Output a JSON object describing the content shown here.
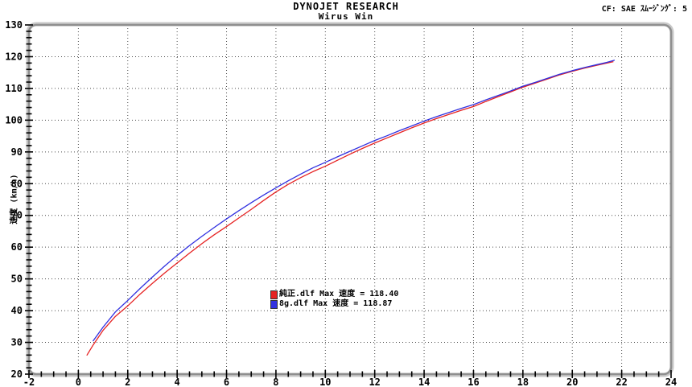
{
  "header": {
    "title": "DYNOJET  RESEARCH",
    "subtitle": "Wirus Win",
    "right_text": "CF: SAE  ｽﾑｰｼﾞﾝｸﾞ: 5"
  },
  "legend": {
    "items": [
      {
        "label": "純正.dlf Max 速度 = 118.40",
        "color": "#e62222"
      },
      {
        "label": "8g.dlf Max 速度 = 118.87",
        "color": "#3030e0"
      }
    ]
  },
  "chart_data": {
    "type": "line",
    "title": "",
    "xlabel": "",
    "ylabel": "速度 (km/h)",
    "xlim": [
      -2,
      24
    ],
    "ylim": [
      20,
      130
    ],
    "xtick_labels": [
      -2,
      0,
      2,
      4,
      6,
      8,
      10,
      12,
      14,
      16,
      18,
      20,
      22,
      24
    ],
    "ytick_labels": [
      20,
      30,
      40,
      50,
      60,
      70,
      80,
      90,
      100,
      110,
      120,
      130
    ],
    "xtick_minor_step": 0.5,
    "ytick_minor_step": 2,
    "grid": "dotted black, vertical every 2 units (0-22), horizontal every 10 units (30-120)",
    "legend_position": "center of plot, x≈7.8, y≈46",
    "frame_color": "#8f8f8f",
    "series": [
      {
        "name": "純正.dlf",
        "max_speed": 118.4,
        "color": "#e62222",
        "points": [
          [
            0.35,
            26.0
          ],
          [
            0.6,
            29.2
          ],
          [
            1,
            33.8
          ],
          [
            1.5,
            38.2
          ],
          [
            2,
            41.5
          ],
          [
            2.5,
            45.2
          ],
          [
            3,
            48.6
          ],
          [
            3.5,
            51.9
          ],
          [
            4,
            55.0
          ],
          [
            4.5,
            58.1
          ],
          [
            5,
            61.1
          ],
          [
            5.5,
            63.9
          ],
          [
            6,
            66.5
          ],
          [
            6.5,
            69.2
          ],
          [
            7,
            71.9
          ],
          [
            7.5,
            74.7
          ],
          [
            8,
            77.4
          ],
          [
            8.5,
            79.8
          ],
          [
            9,
            81.9
          ],
          [
            9.5,
            83.8
          ],
          [
            10,
            85.5
          ],
          [
            10.5,
            87.4
          ],
          [
            11,
            89.3
          ],
          [
            11.5,
            91.1
          ],
          [
            12,
            92.8
          ],
          [
            12.5,
            94.4
          ],
          [
            13,
            96.0
          ],
          [
            13.5,
            97.6
          ],
          [
            14,
            99.1
          ],
          [
            14.5,
            100.5
          ],
          [
            15,
            101.8
          ],
          [
            15.5,
            103.1
          ],
          [
            16,
            104.3
          ],
          [
            16.5,
            105.9
          ],
          [
            17,
            107.4
          ],
          [
            17.5,
            108.9
          ],
          [
            18,
            110.4
          ],
          [
            18.5,
            111.7
          ],
          [
            19,
            113.0
          ],
          [
            19.5,
            114.3
          ],
          [
            20,
            115.4
          ],
          [
            20.5,
            116.4
          ],
          [
            21,
            117.3
          ],
          [
            21.35,
            117.9
          ],
          [
            21.65,
            118.4
          ]
        ]
      },
      {
        "name": "8g.dlf",
        "max_speed": 118.87,
        "color": "#3030e0",
        "points": [
          [
            0.6,
            30.5
          ],
          [
            1,
            34.8
          ],
          [
            1.5,
            39.6
          ],
          [
            2,
            43.2
          ],
          [
            2.5,
            47.0
          ],
          [
            3,
            50.6
          ],
          [
            3.5,
            54.1
          ],
          [
            4,
            57.4
          ],
          [
            4.5,
            60.5
          ],
          [
            5,
            63.4
          ],
          [
            5.5,
            66.2
          ],
          [
            6,
            68.9
          ],
          [
            6.5,
            71.5
          ],
          [
            7,
            74.0
          ],
          [
            7.5,
            76.4
          ],
          [
            8,
            78.7
          ],
          [
            8.5,
            80.9
          ],
          [
            9,
            83.0
          ],
          [
            9.5,
            85.0
          ],
          [
            10,
            86.7
          ],
          [
            10.5,
            88.5
          ],
          [
            11,
            90.2
          ],
          [
            11.5,
            91.9
          ],
          [
            12,
            93.6
          ],
          [
            12.5,
            95.1
          ],
          [
            13,
            96.7
          ],
          [
            13.5,
            98.2
          ],
          [
            14,
            99.7
          ],
          [
            14.5,
            101.1
          ],
          [
            15,
            102.4
          ],
          [
            15.5,
            103.7
          ],
          [
            16,
            104.9
          ],
          [
            16.5,
            106.4
          ],
          [
            17,
            107.8
          ],
          [
            17.5,
            109.2
          ],
          [
            18,
            110.7
          ],
          [
            18.5,
            111.9
          ],
          [
            19,
            113.2
          ],
          [
            19.5,
            114.5
          ],
          [
            20,
            115.6
          ],
          [
            20.5,
            116.6
          ],
          [
            21,
            117.5
          ],
          [
            21.4,
            118.2
          ],
          [
            21.7,
            118.87
          ]
        ]
      }
    ]
  }
}
